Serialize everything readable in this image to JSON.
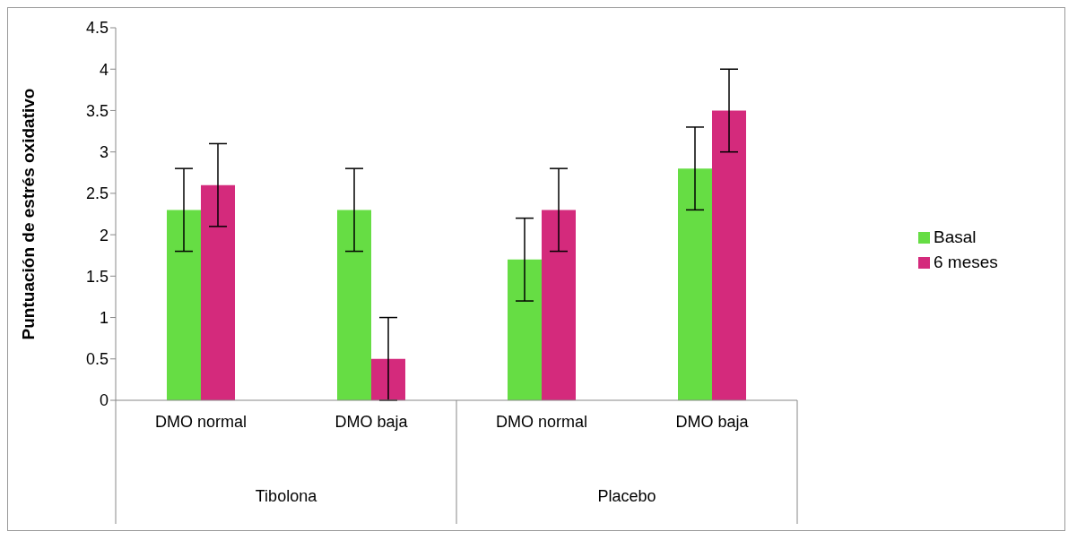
{
  "chart_data": {
    "type": "bar",
    "ylabel": "Puntuación de estrés oxidativo",
    "categories": [
      "DMO normal",
      "DMO baja",
      "DMO normal",
      "DMO baja"
    ],
    "annotations": [
      "Tibolona",
      "Placebo"
    ],
    "series": [
      {
        "name": "Basal",
        "color": "#66dd44",
        "values": [
          2.3,
          2.3,
          1.7,
          2.8
        ],
        "errors": [
          0.5,
          0.5,
          0.5,
          0.5
        ]
      },
      {
        "name": "6 meses",
        "color": "#d42a7c",
        "values": [
          2.6,
          0.5,
          2.3,
          3.5
        ],
        "errors": [
          0.5,
          0.5,
          0.5,
          0.5
        ]
      }
    ],
    "ylim": [
      0,
      4.5
    ],
    "yticks": [
      0,
      0.5,
      1,
      1.5,
      2,
      2.5,
      3,
      3.5,
      4,
      4.5
    ],
    "grid": false,
    "legend": "right"
  }
}
